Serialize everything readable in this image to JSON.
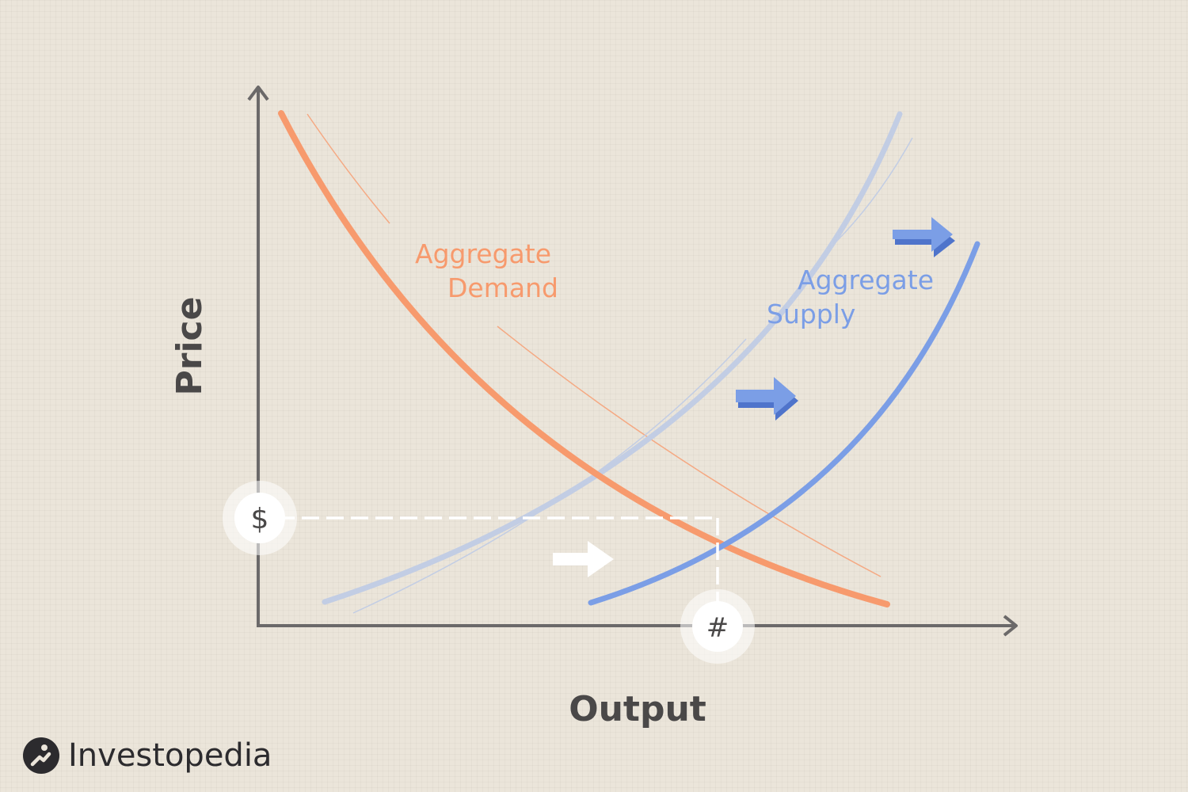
{
  "chart": {
    "y_axis_label": "Price",
    "x_axis_label": "Output",
    "demand_label_line1": "Aggregate",
    "demand_label_line2": "Demand",
    "supply_label_line1": "Aggregate",
    "supply_label_line2": "Supply",
    "price_marker": "$",
    "quantity_marker": "#"
  },
  "brand": {
    "name": "Investopedia",
    "logo_letter": "i"
  },
  "colors": {
    "demand": "#f79a6d",
    "supply_new": "#7b9ee6",
    "supply_old": "#c2cde4",
    "axis": "#6b6969",
    "background": "#ebe5da",
    "text_dark": "#4a4848"
  }
}
